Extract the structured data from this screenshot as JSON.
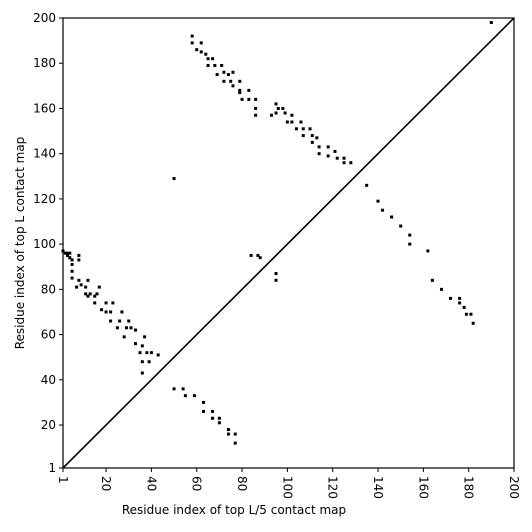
{
  "chart_data": {
    "type": "scatter",
    "xlabel": "Residue index of top L/5 contact map",
    "ylabel": "Residue index of top L contact map",
    "xlim": [
      1,
      200
    ],
    "ylim": [
      1,
      200
    ],
    "xticks": [
      1,
      20,
      40,
      60,
      80,
      100,
      120,
      140,
      160,
      180,
      200
    ],
    "yticks": [
      1,
      20,
      40,
      60,
      80,
      100,
      120,
      140,
      160,
      180,
      200
    ],
    "color": "#000000",
    "diagonal": true,
    "x": [
      1,
      2,
      3,
      4,
      5,
      4,
      3,
      5,
      5,
      5,
      8,
      8,
      7,
      8,
      9,
      11,
      12,
      13,
      11,
      12,
      15,
      16,
      17,
      15,
      18,
      20,
      20,
      22,
      22,
      23,
      25,
      26,
      27,
      28,
      29,
      30,
      31,
      33,
      33,
      35,
      36,
      37,
      36,
      38,
      39,
      40,
      43,
      36,
      50,
      50,
      54,
      55,
      59,
      63,
      63,
      67,
      67,
      70,
      70,
      74,
      74,
      77,
      77,
      58,
      58,
      60,
      62,
      62,
      64,
      65,
      65,
      67,
      68,
      69,
      71,
      72,
      72,
      74,
      75,
      76,
      76,
      79,
      79,
      79,
      80,
      83,
      83,
      86,
      86,
      86,
      93,
      95,
      95,
      96,
      98,
      99,
      100,
      102,
      102,
      104,
      106,
      107,
      107,
      110,
      111,
      111,
      113,
      114,
      114,
      118,
      118,
      121,
      122,
      125,
      125,
      128,
      84,
      87,
      88,
      95,
      95,
      135,
      140,
      142,
      146,
      150,
      154,
      154,
      162,
      164,
      168,
      172,
      176,
      176,
      178,
      179,
      181,
      182,
      190
    ],
    "y": [
      97,
      96,
      95,
      94,
      93,
      96,
      96,
      88,
      85,
      91,
      95,
      93,
      81,
      84,
      82,
      78,
      77,
      78,
      81,
      84,
      74,
      78,
      81,
      77,
      71,
      70,
      74,
      66,
      70,
      74,
      63,
      66,
      70,
      59,
      63,
      66,
      63,
      56,
      62,
      52,
      55,
      59,
      48,
      52,
      48,
      52,
      51,
      43,
      129,
      36,
      36,
      33,
      33,
      30,
      26,
      26,
      23,
      21,
      23,
      18,
      16,
      16,
      12,
      192,
      189,
      186,
      189,
      185,
      184,
      182,
      179,
      182,
      179,
      175,
      179,
      176,
      172,
      175,
      172,
      176,
      170,
      172,
      168,
      167,
      164,
      168,
      164,
      164,
      160,
      157,
      157,
      162,
      158,
      160,
      160,
      158,
      154,
      157,
      154,
      151,
      154,
      151,
      148,
      151,
      148,
      145,
      147,
      143,
      140,
      143,
      139,
      141,
      138,
      138,
      136,
      136,
      95,
      95,
      94,
      84,
      87,
      126,
      119,
      115,
      112,
      108,
      104,
      100,
      97,
      84,
      80,
      76,
      74,
      76,
      72,
      69,
      69,
      65,
      198
    ]
  }
}
